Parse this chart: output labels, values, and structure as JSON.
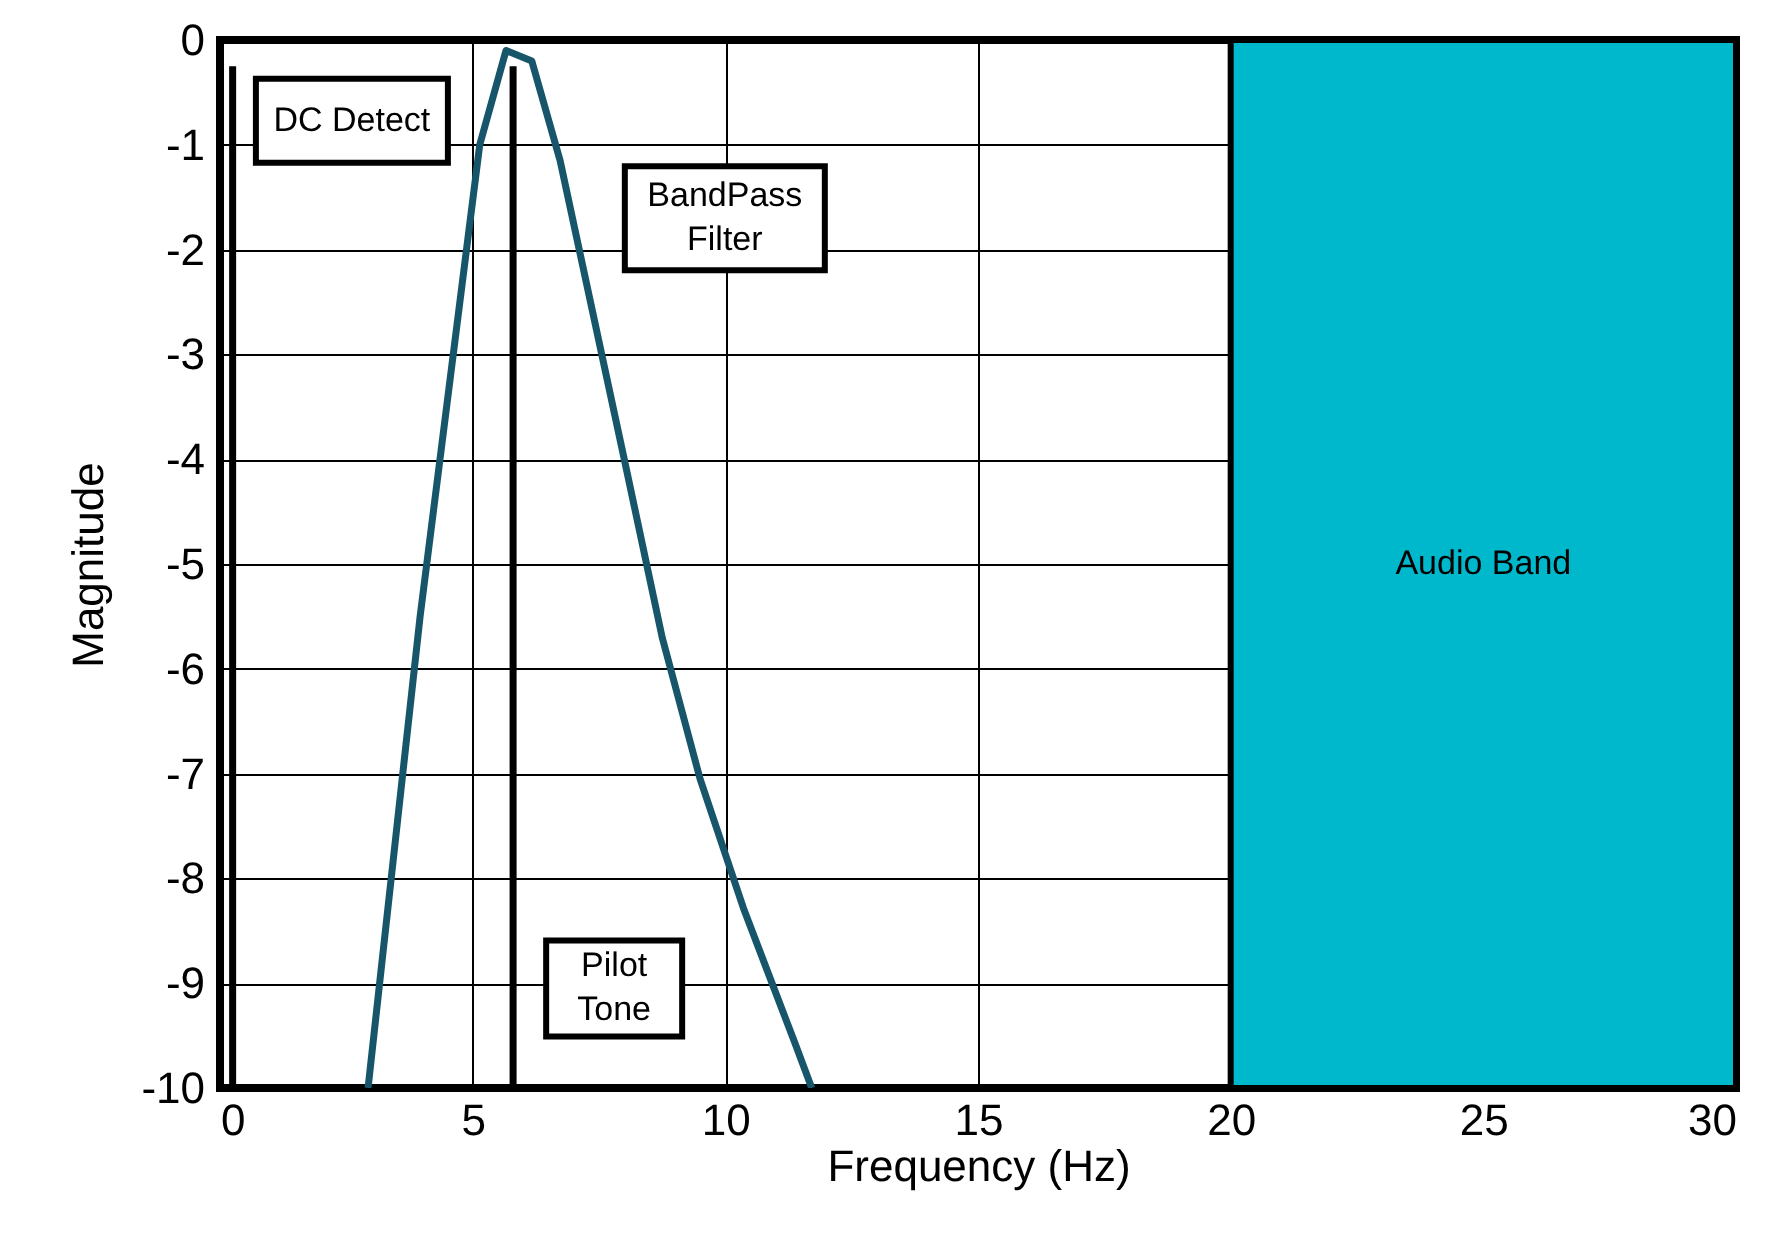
{
  "chart_data": {
    "type": "line",
    "xlabel": "Frequency (Hz)",
    "ylabel": "Magnitude",
    "xlim": [
      0,
      30
    ],
    "ylim": [
      -10,
      0
    ],
    "xticks": [
      0,
      5,
      10,
      15,
      20,
      25,
      30
    ],
    "yticks": [
      0,
      -1,
      -2,
      -3,
      -4,
      -5,
      -6,
      -7,
      -8,
      -9,
      -10
    ],
    "grid": true,
    "line_style": "solid",
    "marker": "none",
    "series": [
      {
        "name": "BandPass Filter",
        "color": "#17566a",
        "x": [
          2.93,
          3.96,
          5.14,
          5.66,
          6.17,
          6.73,
          8.0,
          8.75,
          9.5,
          10.37,
          11.36,
          11.71
        ],
        "values": [
          -10,
          -5.5,
          -1.0,
          -0.1,
          -0.2,
          -1.15,
          -4.0,
          -5.7,
          -7.05,
          -8.3,
          -9.55,
          -10
        ]
      },
      {
        "name": "DC Detect",
        "color": "#000000",
        "x": [
          0.25,
          0.25
        ],
        "values": [
          -0.25,
          -10
        ]
      },
      {
        "name": "Pilot Tone",
        "color": "#000000",
        "x": [
          5.8,
          5.8
        ],
        "values": [
          -0.25,
          -10
        ]
      }
    ],
    "bands": [
      {
        "axis": "x",
        "from": 20,
        "to": 30,
        "label": "Audio Band",
        "color": "#00b8cc"
      }
    ]
  }
}
